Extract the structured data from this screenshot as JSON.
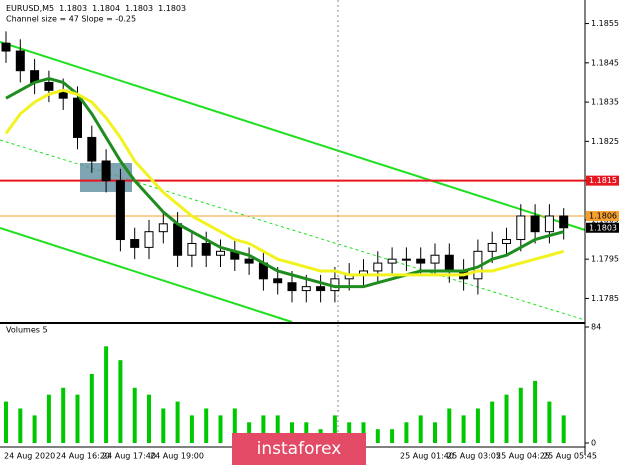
{
  "chart_data": {
    "type": "candlestick",
    "title": "EURUSD,M5",
    "header_values": [
      1.1803,
      1.1804,
      1.1803,
      1.1803
    ],
    "subtitle": "Channel size = 47 Slope = -0.25",
    "open": [
      1.185,
      1.1848,
      1.1843,
      1.184,
      1.1838,
      1.1836,
      1.1826,
      1.182,
      1.1815,
      1.18,
      1.1798,
      1.1802,
      1.1804,
      1.1796,
      1.1799,
      1.1796,
      1.1797,
      1.1795,
      1.1794,
      1.179,
      1.1789,
      1.1787,
      1.1788,
      1.1787,
      1.179,
      1.1791,
      1.1792,
      1.1794,
      1.1795,
      1.1795,
      1.1794,
      1.1796,
      1.1792,
      1.179,
      1.1797,
      1.1799,
      1.18,
      1.1806,
      1.1802,
      1.1806
    ],
    "high": [
      1.1853,
      1.1851,
      1.1846,
      1.1843,
      1.1841,
      1.1839,
      1.1829,
      1.1823,
      1.1818,
      1.1803,
      1.1805,
      1.1807,
      1.1807,
      1.1802,
      1.1802,
      1.18,
      1.18,
      1.1798,
      1.1797,
      1.1793,
      1.1792,
      1.1791,
      1.1791,
      1.1793,
      1.1794,
      1.1795,
      1.1797,
      1.1798,
      1.1798,
      1.1798,
      1.1799,
      1.1799,
      1.1795,
      1.18,
      1.1802,
      1.1803,
      1.1809,
      1.1809,
      1.1809,
      1.1808
    ],
    "low": [
      1.1845,
      1.184,
      1.1837,
      1.1835,
      1.1833,
      1.1823,
      1.1817,
      1.1812,
      1.1797,
      1.1795,
      1.1795,
      1.1799,
      1.1793,
      1.1793,
      1.1793,
      1.1793,
      1.1792,
      1.1791,
      1.1787,
      1.1786,
      1.1784,
      1.1784,
      1.1784,
      1.1784,
      1.1787,
      1.1788,
      1.1789,
      1.1791,
      1.1792,
      1.1791,
      1.1791,
      1.1789,
      1.1787,
      1.1786,
      1.1794,
      1.1796,
      1.1797,
      1.1799,
      1.1799,
      1.18
    ],
    "close": [
      1.1848,
      1.1843,
      1.184,
      1.1838,
      1.1836,
      1.1826,
      1.182,
      1.1815,
      1.18,
      1.1798,
      1.1802,
      1.1804,
      1.1796,
      1.1799,
      1.1796,
      1.1797,
      1.1795,
      1.1794,
      1.179,
      1.1789,
      1.1787,
      1.1788,
      1.1787,
      1.179,
      1.1791,
      1.1792,
      1.1794,
      1.1795,
      1.1795,
      1.1794,
      1.1796,
      1.1792,
      1.179,
      1.1797,
      1.1799,
      1.18,
      1.1806,
      1.1802,
      1.1806,
      1.1803
    ],
    "moving_averages": [
      {
        "color": "#1e8c1e",
        "values": [
          1.1836,
          1.1838,
          1.184,
          1.1841,
          1.184,
          1.1837,
          1.1832,
          1.1826,
          1.182,
          1.1815,
          1.1811,
          1.1807,
          1.1804,
          1.1802,
          1.18,
          1.1798,
          1.1797,
          1.1796,
          1.1794,
          1.1792,
          1.1791,
          1.179,
          1.1789,
          1.1788,
          1.1788,
          1.1788,
          1.1789,
          1.179,
          1.1791,
          1.1792,
          1.1792,
          1.1792,
          1.1792,
          1.1793,
          1.1795,
          1.1796,
          1.1798,
          1.18,
          1.1801,
          1.1802
        ]
      },
      {
        "color": "#f2f21e",
        "values": [
          1.1827,
          1.1832,
          1.1835,
          1.1837,
          1.1838,
          1.1837,
          1.1835,
          1.1831,
          1.1826,
          1.182,
          1.1816,
          1.1812,
          1.1809,
          1.1806,
          1.1804,
          1.1802,
          1.18,
          1.1799,
          1.1797,
          1.1795,
          1.1794,
          1.1793,
          1.1792,
          1.1792,
          1.1791,
          1.1791,
          1.1791,
          1.1791,
          1.1791,
          1.1791,
          1.1791,
          1.1791,
          1.1791,
          1.1792,
          1.1792,
          1.1793,
          1.1794,
          1.1795,
          1.1796,
          1.1797
        ]
      }
    ],
    "levels": [
      {
        "value": 1.1815,
        "color": "#e8141e",
        "text_color": "#ffffff"
      },
      {
        "value": 1.1806,
        "color": "#f5a030",
        "text_color": "#000000"
      },
      {
        "value": 1.1803,
        "color": "#000000",
        "text_color": "#ffffff"
      }
    ],
    "ylim": [
      1.1779,
      1.1861
    ],
    "yticks": [
      1.1785,
      1.1795,
      1.1805,
      1.1815,
      1.1825,
      1.1835,
      1.1845,
      1.1855
    ],
    "x_tick_labels": [
      "24 Aug 2020",
      "24 Aug 16:20",
      "24 Aug 17:40",
      "24 Aug 19:00",
      "25 Aug 01:40",
      "25 Aug 03:05",
      "25 Aug 04:25",
      "25 Aug 05:45"
    ],
    "volume": {
      "title": "Volumes 5",
      "color": "#00c800",
      "values": [
        30,
        25,
        20,
        35,
        40,
        35,
        50,
        70,
        60,
        40,
        35,
        25,
        30,
        20,
        25,
        20,
        25,
        15,
        20,
        20,
        15,
        15,
        10,
        20,
        15,
        15,
        10,
        10,
        15,
        20,
        15,
        25,
        20,
        25,
        30,
        35,
        40,
        45,
        30,
        20
      ],
      "ylim": [
        0,
        84
      ],
      "yticks": [
        0,
        84
      ]
    },
    "watermark": "instaforex"
  }
}
